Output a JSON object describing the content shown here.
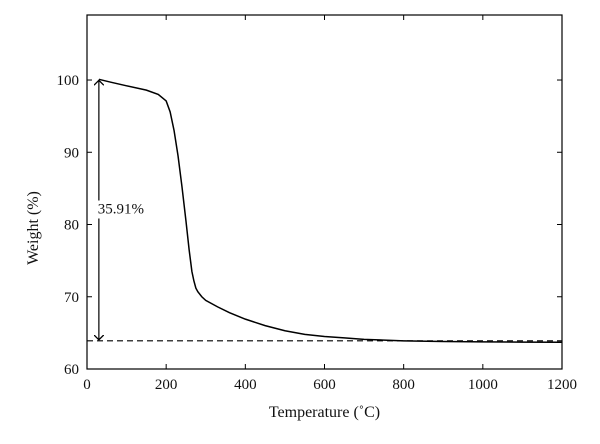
{
  "chart_data": {
    "type": "line",
    "xlabel": "Temperature (˚C)",
    "ylabel": "Weight (%)",
    "xlim": [
      0,
      1200
    ],
    "ylim": [
      60,
      109
    ],
    "xticks": [
      0,
      200,
      400,
      600,
      800,
      1000,
      1200
    ],
    "yticks": [
      60,
      70,
      80,
      90,
      100
    ],
    "grid": false,
    "series": [
      {
        "x": [
          30,
          60,
          100,
          150,
          180,
          200,
          210,
          220,
          230,
          240,
          250,
          258,
          265,
          270,
          275,
          280,
          290,
          300,
          330,
          360,
          400,
          450,
          500,
          550,
          600,
          650,
          700,
          800,
          900,
          1000,
          1100,
          1200
        ],
        "y": [
          100.1,
          99.7,
          99.2,
          98.6,
          98.0,
          97.1,
          95.6,
          93.0,
          89.5,
          85.2,
          80.5,
          76.5,
          73.5,
          72.2,
          71.2,
          70.7,
          70.0,
          69.5,
          68.6,
          67.8,
          66.9,
          66.0,
          65.3,
          64.8,
          64.5,
          64.3,
          64.1,
          63.9,
          63.8,
          63.75,
          63.72,
          63.7
        ]
      }
    ],
    "reference_lines": [
      {
        "orientation": "horizontal",
        "y": 63.9,
        "style": "dashed"
      }
    ],
    "annotations": [
      {
        "text": "35.91%",
        "type": "double-arrow",
        "x": 30,
        "y_from": 100.1,
        "y_to": 63.9
      }
    ],
    "colors": {
      "line": "#000000",
      "axes": "#000000",
      "background": "#ffffff"
    }
  }
}
